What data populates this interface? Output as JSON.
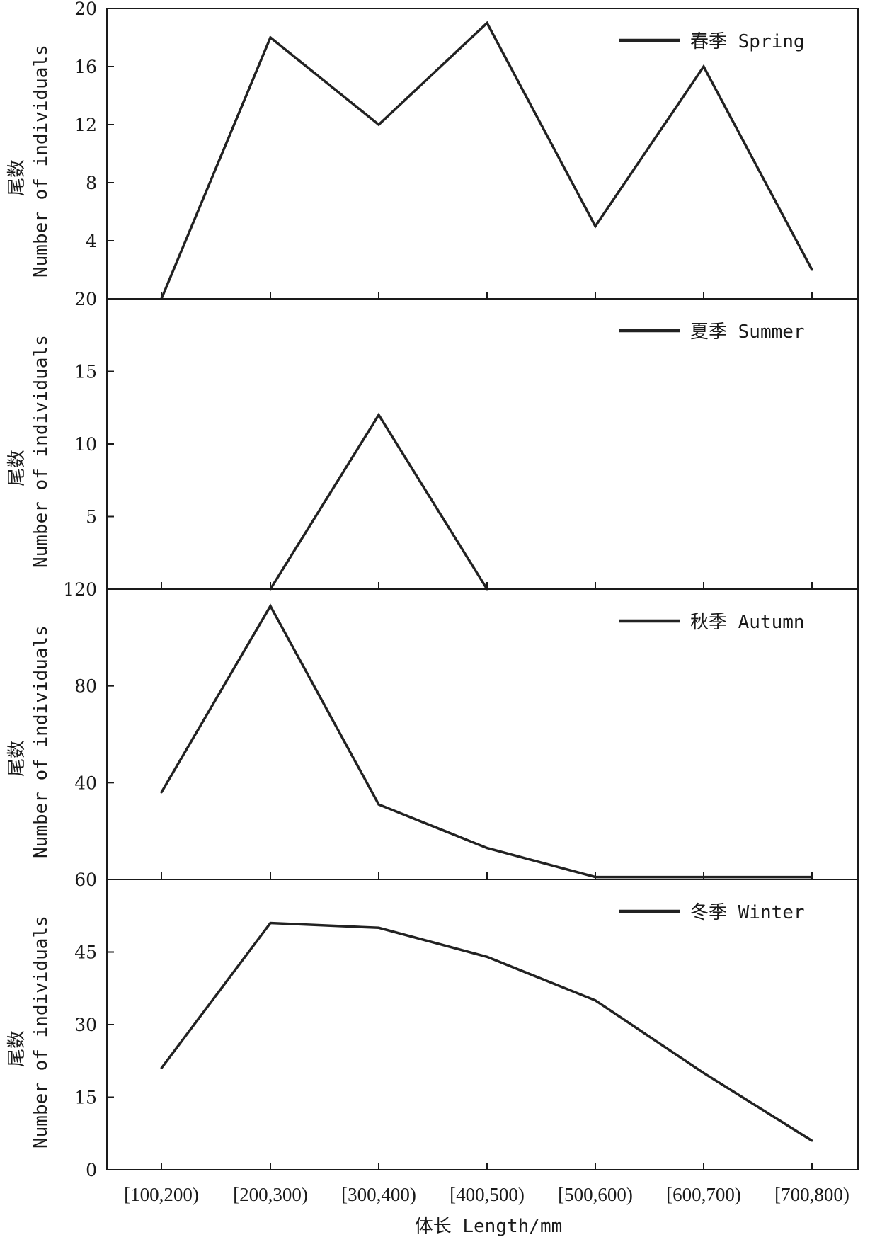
{
  "chart_data": [
    {
      "type": "line",
      "series_name": "春季 Spring",
      "ylabel_cn": "尾数",
      "ylabel_en": "Number of individuals",
      "categories": [
        "[100,200)",
        "[200,300)",
        "[300,400)",
        "[400,500)",
        "[500,600)",
        "[600,700)",
        "[700,800)"
      ],
      "values": [
        0,
        18,
        12,
        19,
        5,
        16,
        2
      ],
      "ylim": [
        0,
        20
      ],
      "yticks": [
        0,
        4,
        8,
        12,
        16,
        20
      ],
      "ytick_labels": [
        "20",
        "4",
        "8",
        "12",
        "16",
        "20"
      ]
    },
    {
      "type": "line",
      "series_name": "夏季 Summer",
      "ylabel_cn": "尾数",
      "ylabel_en": "Number of individuals",
      "categories": [
        "[100,200)",
        "[200,300)",
        "[300,400)",
        "[400,500)",
        "[500,600)",
        "[600,700)",
        "[700,800)"
      ],
      "values": [
        null,
        0,
        12,
        0,
        null,
        null,
        null
      ],
      "ylim": [
        0,
        20
      ],
      "yticks": [
        0,
        5,
        10,
        15
      ],
      "ytick_labels": [
        "120",
        "5",
        "10",
        "15"
      ]
    },
    {
      "type": "line",
      "series_name": "秋季 Autumn",
      "ylabel_cn": "尾数",
      "ylabel_en": "Number of individuals",
      "categories": [
        "[100,200)",
        "[200,300)",
        "[300,400)",
        "[400,500)",
        "[500,600)",
        "[600,700)",
        "[700,800)"
      ],
      "values": [
        36,
        113,
        31,
        13,
        1,
        1,
        1
      ],
      "ylim": [
        0,
        120
      ],
      "yticks": [
        0,
        40,
        80
      ],
      "ytick_labels": [
        "60",
        "40",
        "80"
      ]
    },
    {
      "type": "line",
      "series_name": "冬季 Winter",
      "ylabel_cn": "尾数",
      "ylabel_en": "Number of individuals",
      "categories": [
        "[100,200)",
        "[200,300)",
        "[300,400)",
        "[400,500)",
        "[500,600)",
        "[600,700)",
        "[700,800)"
      ],
      "values": [
        21,
        51,
        50,
        44,
        35,
        20,
        6
      ],
      "ylim": [
        0,
        60
      ],
      "yticks": [
        0,
        15,
        30,
        45
      ],
      "ytick_labels": [
        "0",
        "15",
        "30",
        "45"
      ]
    }
  ],
  "xlabel": "体长 Length/mm",
  "x_tick_labels": [
    "[100,200)",
    "[200,300)",
    "[300,400)",
    "[400,500)",
    "[500,600)",
    "[600,700)",
    "[700,800)"
  ]
}
